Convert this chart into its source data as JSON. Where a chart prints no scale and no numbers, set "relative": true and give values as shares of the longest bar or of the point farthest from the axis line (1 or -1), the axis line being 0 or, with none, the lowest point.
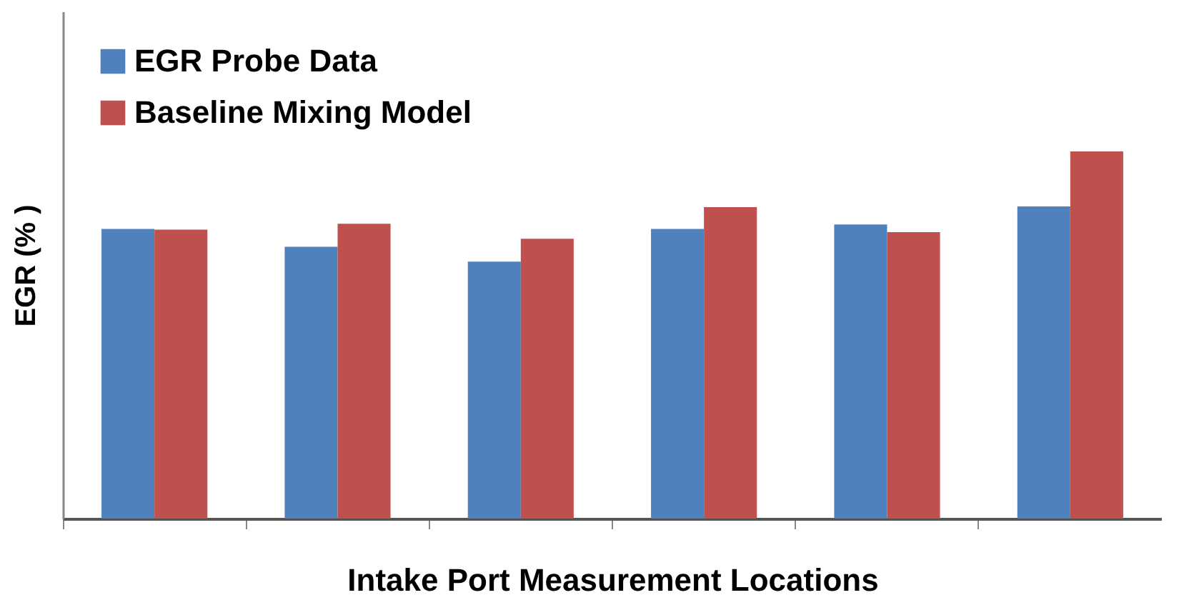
{
  "chart_data": {
    "type": "bar",
    "xlabel": "Intake Port Measurement Locations",
    "ylabel": "EGR (% )",
    "categories": [
      null,
      null,
      null,
      null,
      null,
      null
    ],
    "relative": true,
    "series": [
      {
        "name": "EGR Probe Data",
        "color": "#4f81bd",
        "values": [
          0.789,
          0.74,
          0.7,
          0.789,
          0.801,
          0.85
        ]
      },
      {
        "name": "Baseline Mixing Model",
        "color": "#c0504d",
        "values": [
          0.787,
          0.803,
          0.762,
          0.848,
          0.78,
          1.0
        ]
      }
    ],
    "legend": "top left",
    "grid": false
  }
}
